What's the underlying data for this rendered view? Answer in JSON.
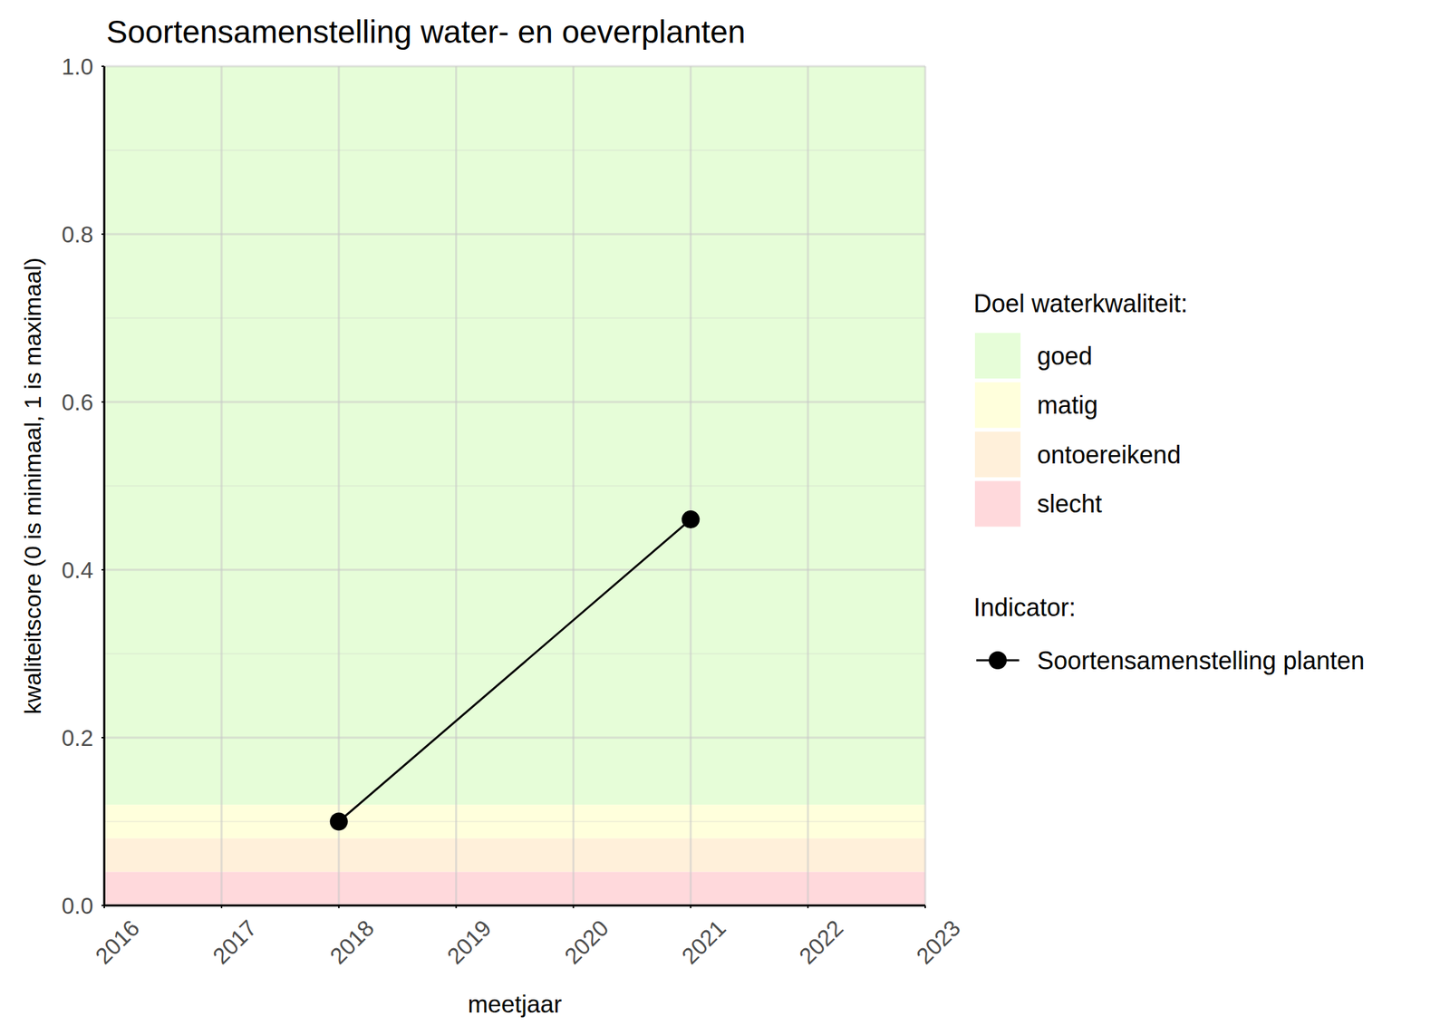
{
  "chart_data": {
    "type": "line",
    "title": "Soortensamenstelling water- en oeverplanten",
    "x_label": "meetjaar",
    "y_label": "kwaliteitscore (0 is minimaal, 1 is maximaal)",
    "x": [
      2018,
      2021
    ],
    "series": [
      {
        "name": "Soortensamenstelling planten",
        "color": "#000000",
        "marker": "circle",
        "line_style": "solid",
        "values": [
          0.1,
          0.46
        ]
      }
    ],
    "xlim": [
      2016,
      2023
    ],
    "xticks": [
      2016,
      2017,
      2018,
      2019,
      2020,
      2021,
      2022,
      2023
    ],
    "ylim": [
      0,
      1
    ],
    "yticks": [
      {
        "value": 0,
        "label": "0.0"
      },
      0.2,
      0.4,
      0.6,
      0.8,
      {
        "value": 1,
        "label": "1.0"
      }
    ],
    "grid": true,
    "legend": "right",
    "legend_title": "Indicator:",
    "bands_title": "Doel waterkwaliteit:",
    "bands": [
      {
        "name": "goed",
        "color": "#e6fdd8",
        "from": 0.12,
        "to": 1
      },
      {
        "name": "matig",
        "color": "#ffffdc",
        "from": 0.08,
        "to": 0.12
      },
      {
        "name": "ontoereikend",
        "color": "#fff0da",
        "from": 0.04,
        "to": 0.08
      },
      {
        "name": "slecht",
        "color": "#ffd9dc",
        "from": 0,
        "to": 0.04
      }
    ]
  }
}
